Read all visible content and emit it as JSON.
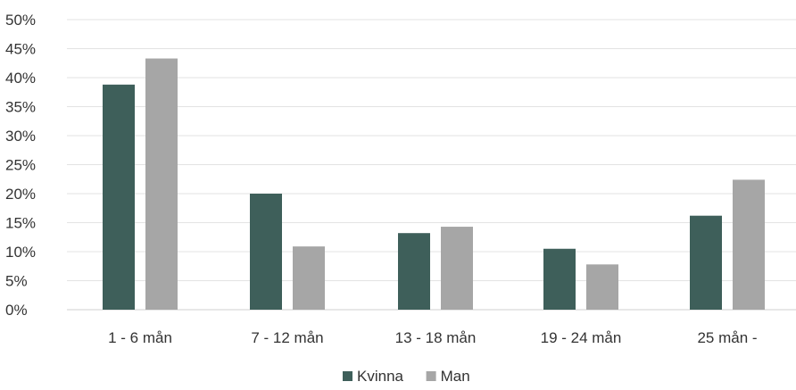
{
  "chart_data": {
    "type": "bar",
    "categories": [
      "1 - 6 mån",
      "7 - 12 mån",
      "13 - 18 mån",
      "19 - 24 mån",
      "25 mån -"
    ],
    "series": [
      {
        "name": "Kvinna",
        "values": [
          38.8,
          20.0,
          13.2,
          10.5,
          16.2
        ],
        "color": "#3e5f5a"
      },
      {
        "name": "Man",
        "values": [
          43.3,
          10.9,
          14.3,
          7.8,
          22.4
        ],
        "color": "#a6a6a6"
      }
    ],
    "y_ticks": [
      "0%",
      "5%",
      "10%",
      "15%",
      "20%",
      "25%",
      "30%",
      "35%",
      "40%",
      "45%",
      "50%"
    ],
    "ylim": [
      0,
      50
    ],
    "grid": true,
    "legend_position": "bottom-center",
    "title": "",
    "xlabel": "",
    "ylabel": ""
  }
}
